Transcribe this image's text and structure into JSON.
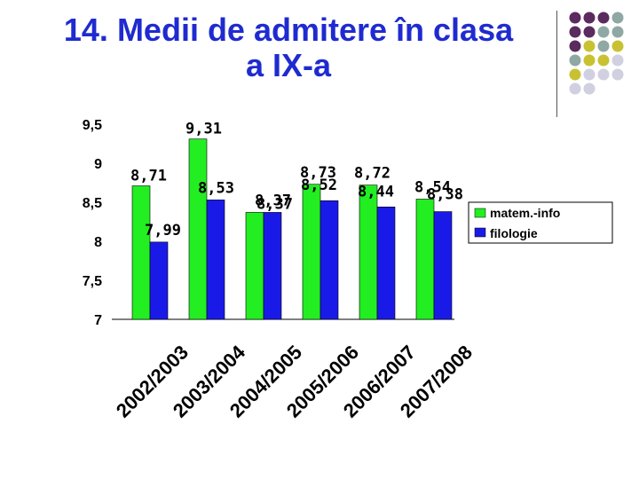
{
  "slide": {
    "title_line1": "14. Medii de admitere în clasa",
    "title_line2": "a IX-a",
    "accent_colors": [
      "#5b2a5e",
      "#8fa8a4",
      "#c8c232",
      "#d0d0e0"
    ]
  },
  "chart_data": {
    "type": "bar",
    "categories": [
      "2002/2003",
      "2003/2004",
      "2004/2005",
      "2005/2006",
      "2006/2007",
      "2007/2008"
    ],
    "series": [
      {
        "name": "matem.-info",
        "color": "#22ee22",
        "values": [
          8.71,
          9.31,
          8.37,
          8.73,
          8.72,
          8.54
        ],
        "labels": [
          "8,71",
          "9,31",
          "8,37",
          "8,73",
          "8,72",
          "8,54"
        ]
      },
      {
        "name": "filologie",
        "color": "#1a1ae8",
        "values": [
          7.99,
          8.53,
          8.37,
          8.52,
          8.44,
          8.38
        ],
        "labels": [
          "7,99",
          "8,53",
          "8,37",
          "8,52",
          "8,44",
          "8,38"
        ]
      }
    ],
    "y_ticks": [
      "7",
      "7,5",
      "8",
      "8,5",
      "9",
      "9,5"
    ],
    "ylim": [
      7,
      9.5
    ],
    "legend_position": "right",
    "grid": false
  }
}
